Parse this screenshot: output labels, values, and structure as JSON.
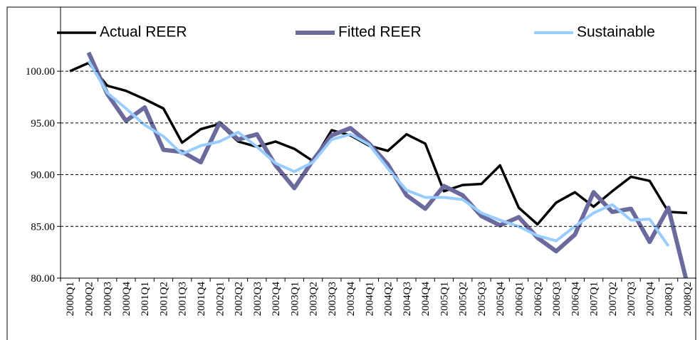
{
  "chart_data": {
    "type": "line",
    "categories": [
      "2000Q1",
      "2000Q2",
      "2000Q3",
      "2000Q4",
      "2001Q1",
      "2001Q2",
      "2001Q3",
      "2001Q4",
      "2002Q1",
      "2002Q2",
      "2002Q3",
      "2002Q4",
      "2003Q1",
      "2003Q2",
      "2003Q3",
      "2003Q4",
      "2004Q1",
      "2004Q2",
      "2004Q3",
      "2004Q4",
      "2005Q1",
      "2005Q2",
      "2005Q3",
      "2005Q4",
      "2006Q1",
      "2006Q2",
      "2006Q3",
      "2006Q4",
      "2007Q1",
      "2007Q2",
      "2007Q3",
      "2007Q4",
      "2008Q1",
      "2008Q2"
    ],
    "series": [
      {
        "name": "Actual REER",
        "color": "#000000",
        "values": [
          100.0,
          100.8,
          98.6,
          98.1,
          97.3,
          96.4,
          93.1,
          94.4,
          94.9,
          93.2,
          92.7,
          93.2,
          92.5,
          91.3,
          94.3,
          93.8,
          92.8,
          92.3,
          93.9,
          93.0,
          88.4,
          89.0,
          89.1,
          90.9,
          86.8,
          85.2,
          87.3,
          88.3,
          86.9,
          88.4,
          89.8,
          89.4,
          86.4,
          86.3
        ]
      },
      {
        "name": "Fitted REER",
        "color": "#6a6a9c",
        "values": [
          null,
          101.8,
          97.8,
          95.2,
          96.5,
          92.4,
          92.2,
          91.2,
          95.0,
          93.4,
          93.9,
          90.9,
          88.7,
          91.4,
          93.8,
          94.5,
          93.0,
          91.0,
          88.0,
          86.7,
          88.9,
          88.0,
          86.0,
          85.1,
          85.9,
          83.9,
          82.6,
          84.2,
          88.3,
          86.4,
          86.7,
          83.5,
          86.8,
          79.5
        ]
      },
      {
        "name": "Sustainable",
        "color": "#99ccff",
        "values": [
          null,
          101.0,
          97.9,
          96.4,
          94.8,
          93.7,
          92.0,
          92.8,
          93.2,
          94.1,
          92.7,
          91.1,
          90.3,
          91.2,
          93.4,
          93.9,
          92.9,
          90.6,
          88.5,
          87.8,
          87.8,
          87.6,
          86.3,
          85.6,
          85.0,
          84.1,
          83.6,
          85.0,
          86.3,
          87.1,
          85.6,
          85.7,
          83.1,
          null
        ]
      }
    ],
    "ylim": [
      80,
      102
    ],
    "yticks": [
      {
        "value": 80,
        "label": "80.00"
      },
      {
        "value": 85,
        "label": "85.00"
      },
      {
        "value": 90,
        "label": "90.00"
      },
      {
        "value": 95,
        "label": "95.00"
      },
      {
        "value": 100,
        "label": "100.00"
      }
    ],
    "grid": true,
    "legend": "top"
  }
}
